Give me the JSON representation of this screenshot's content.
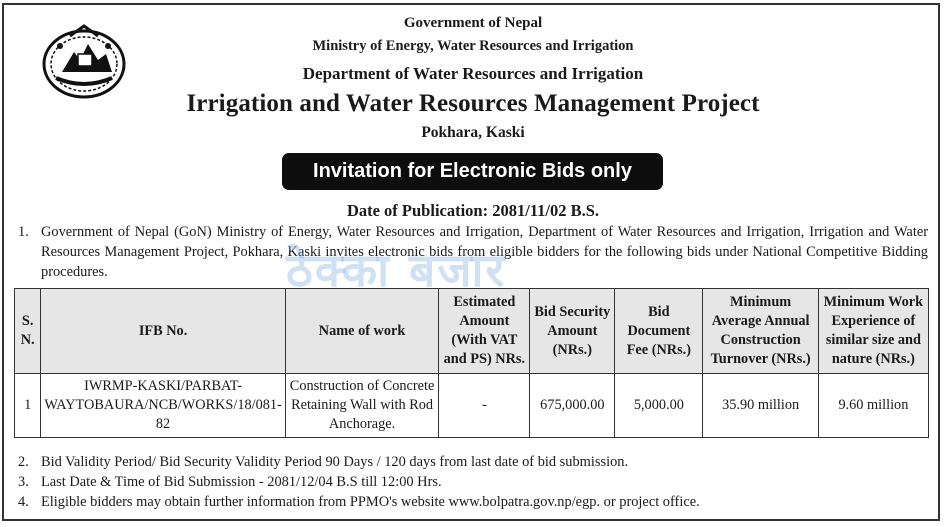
{
  "header": {
    "line1": "Government of Nepal",
    "line2": "Ministry of Energy, Water Resources and Irrigation",
    "line3": "Department of Water Resources and Irrigation",
    "project": "Irrigation and Water Resources Management Project",
    "location": "Pokhara, Kaski"
  },
  "emblem_icon": "nepal-government-emblem-icon",
  "banner": "Invitation for Electronic Bids only",
  "publication_date": "Date of Publication: 2081/11/02 B.S.",
  "intro": {
    "number": "1.",
    "text": "Government of Nepal (GoN) Ministry of Energy, Water Resources and Irrigation, Department of Water Resources and Irrigation, Irrigation and Water Resources Management Project, Pokhara, Kaski invites electronic bids from eligible bidders for the following bids under National Competitive Bidding procedures."
  },
  "watermark": "ठेक्का बजार",
  "table": {
    "headers": [
      "S. N.",
      "IFB No.",
      "Name of work",
      "Estimated Amount (With VAT and PS) NRs.",
      "Bid Security Amount (NRs.)",
      "Bid Document Fee (NRs.)",
      "Minimum Average Annual Construction Turnover (NRs.)",
      "Minimum Work Experience of similar size and nature (NRs.)"
    ],
    "rows": [
      [
        "1",
        "IWRMP-KASKI/PARBAT-WAYTOBAURA/NCB/WORKS/18/081-82",
        "Construction of Concrete Retaining Wall with Rod Anchorage.",
        "-",
        "675,000.00",
        "5,000.00",
        "35.90 million",
        "9.60 million"
      ]
    ]
  },
  "notes": [
    {
      "number": "2.",
      "text": "Bid Validity Period/ Bid Security Validity Period 90 Days / 120 days from last date of bid submission."
    },
    {
      "number": "3.",
      "text": "Last Date & Time of Bid Submission - 2081/12/04 B.S till 12:00 Hrs."
    },
    {
      "number": "4.",
      "text": "Eligible bidders may obtain further information from PPMO's website www.bolpatra.gov.np/egp. or project office."
    }
  ]
}
